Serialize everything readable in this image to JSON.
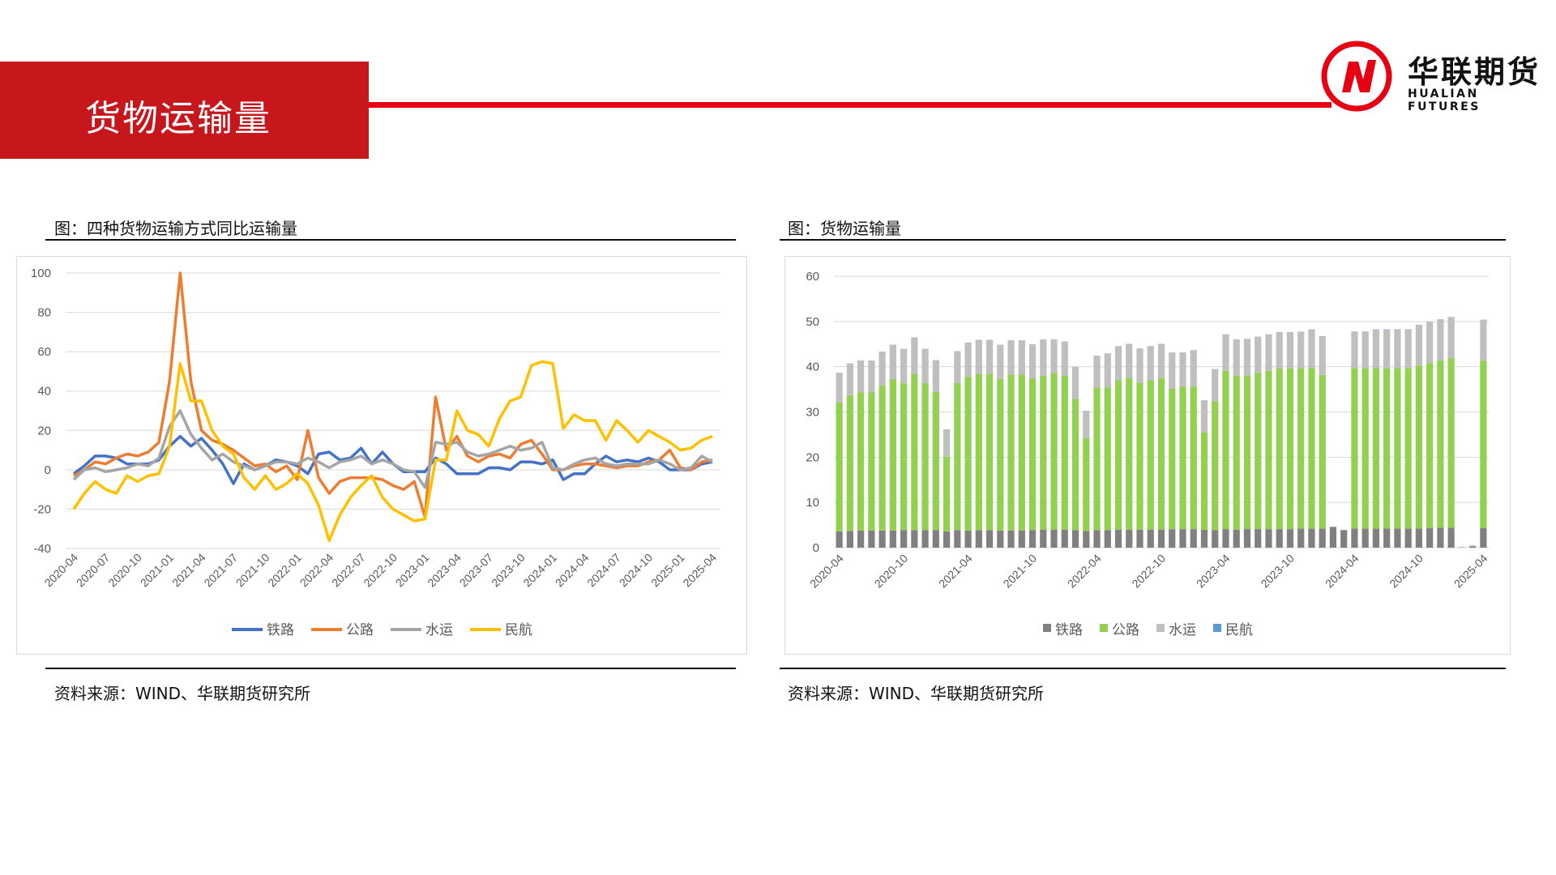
{
  "header": {
    "title": "货物运输量"
  },
  "logo": {
    "name": "华联期货",
    "sub": "HUALIAN FUTURES",
    "accent": "#e60012"
  },
  "left": {
    "caption": "图：四种货物运输方式同比运输量",
    "source": "资料来源：WIND、华联期货研究所"
  },
  "right": {
    "caption": "图：货物运输量",
    "source": "资料来源：WIND、华联期货研究所"
  },
  "chart_data": [
    {
      "type": "line",
      "title": "",
      "ylim": [
        -40,
        100
      ],
      "yticks": [
        -40,
        -20,
        0,
        20,
        40,
        60,
        80,
        100
      ],
      "x": [
        "2020-04",
        "2020-05",
        "2020-06",
        "2020-07",
        "2020-08",
        "2020-09",
        "2020-10",
        "2020-11",
        "2020-12",
        "2021-01",
        "2021-02",
        "2021-03",
        "2021-04",
        "2021-05",
        "2021-06",
        "2021-07",
        "2021-08",
        "2021-09",
        "2021-10",
        "2021-11",
        "2021-12",
        "2022-01",
        "2022-02",
        "2022-03",
        "2022-04",
        "2022-05",
        "2022-06",
        "2022-07",
        "2022-08",
        "2022-09",
        "2022-10",
        "2022-11",
        "2022-12",
        "2023-01",
        "2023-02",
        "2023-03",
        "2023-04",
        "2023-05",
        "2023-06",
        "2023-07",
        "2023-08",
        "2023-09",
        "2023-10",
        "2023-11",
        "2023-12",
        "2024-01",
        "2024-02",
        "2024-03",
        "2024-04",
        "2024-05",
        "2024-06",
        "2024-07",
        "2024-08",
        "2024-09",
        "2024-10",
        "2024-11",
        "2024-12",
        "2025-01",
        "2025-02",
        "2025-03",
        "2025-04"
      ],
      "xticks": [
        "2020-04",
        "2020-07",
        "2020-10",
        "2021-01",
        "2021-04",
        "2021-07",
        "2021-10",
        "2022-01",
        "2022-04",
        "2022-07",
        "2022-10",
        "2023-01",
        "2023-04",
        "2023-07",
        "2023-10",
        "2024-01",
        "2024-04",
        "2024-07",
        "2024-10",
        "2025-01",
        "2025-04"
      ],
      "legend": "bottom",
      "grid": true,
      "series": [
        {
          "name": "铁路",
          "color": "#4472c4",
          "values": [
            -2,
            2,
            7,
            7,
            6,
            3,
            3,
            3,
            5,
            12,
            17,
            12,
            16,
            10,
            3,
            -7,
            3,
            0,
            2,
            5,
            4,
            2,
            -2,
            8,
            9,
            5,
            6,
            11,
            3,
            9,
            3,
            -1,
            -1,
            -1,
            6,
            3,
            -2,
            -2,
            -2,
            1,
            1,
            0,
            4,
            4,
            3,
            5,
            -5,
            -2,
            -2,
            3,
            7,
            4,
            5,
            4,
            6,
            4,
            0,
            0,
            0,
            3,
            4
          ]
        },
        {
          "name": "公路",
          "color": "#ed7d31",
          "values": [
            -3,
            0,
            4,
            3,
            6,
            8,
            7,
            9,
            14,
            45,
            100,
            45,
            20,
            15,
            13,
            10,
            6,
            2,
            3,
            -1,
            2,
            -5,
            20,
            -4,
            -12,
            -6,
            -4,
            -4,
            -4,
            -5,
            -8,
            -10,
            -6,
            -24,
            37,
            10,
            17,
            7,
            4,
            7,
            8,
            6,
            13,
            15,
            8,
            0,
            0,
            2,
            3,
            3,
            2,
            1,
            2,
            2,
            4,
            5,
            10,
            1,
            0,
            4,
            5
          ]
        },
        {
          "name": "水运",
          "color": "#a5a5a5",
          "values": [
            -5,
            0,
            1,
            -1,
            0,
            1,
            3,
            2,
            6,
            22,
            30,
            18,
            11,
            5,
            8,
            4,
            2,
            0,
            2,
            4,
            4,
            3,
            6,
            4,
            1,
            4,
            5,
            7,
            3,
            5,
            3,
            0,
            -1,
            -9,
            14,
            13,
            14,
            9,
            7,
            8,
            10,
            12,
            10,
            11,
            14,
            1,
            0,
            3,
            5,
            6,
            3,
            2,
            3,
            3,
            3,
            5,
            3,
            0,
            1,
            7,
            4
          ]
        },
        {
          "name": "民航",
          "color": "#ffc000",
          "values": [
            -20,
            -12,
            -6,
            -10,
            -12,
            -3,
            -6,
            -3,
            -2,
            12,
            54,
            35,
            35,
            20,
            12,
            8,
            -4,
            -10,
            -3,
            -10,
            -7,
            -2,
            -7,
            -18,
            -36,
            -23,
            -14,
            -8,
            -3,
            -14,
            -20,
            -23,
            -26,
            -25,
            5,
            5,
            30,
            20,
            18,
            12,
            26,
            35,
            37,
            53,
            55,
            54,
            21,
            28,
            25,
            25,
            15,
            25,
            20,
            14,
            20,
            17,
            14,
            10,
            11,
            15,
            17
          ]
        }
      ]
    },
    {
      "type": "bar",
      "stacked": true,
      "title": "",
      "ylim": [
        0,
        60
      ],
      "yticks": [
        0,
        10,
        20,
        30,
        40,
        50,
        60
      ],
      "x": [
        "2020-04",
        "2020-05",
        "2020-06",
        "2020-07",
        "2020-08",
        "2020-09",
        "2020-10",
        "2020-11",
        "2020-12",
        "2021-01",
        "2021-02",
        "2021-03",
        "2021-04",
        "2021-05",
        "2021-06",
        "2021-07",
        "2021-08",
        "2021-09",
        "2021-10",
        "2021-11",
        "2021-12",
        "2022-01",
        "2022-02",
        "2022-03",
        "2022-04",
        "2022-05",
        "2022-06",
        "2022-07",
        "2022-08",
        "2022-09",
        "2022-10",
        "2022-11",
        "2022-12",
        "2023-01",
        "2023-02",
        "2023-03",
        "2023-04",
        "2023-05",
        "2023-06",
        "2023-07",
        "2023-08",
        "2023-09",
        "2023-10",
        "2023-11",
        "2023-12",
        "2024-01",
        "2024-02",
        "2024-03",
        "2024-04",
        "2024-05",
        "2024-06",
        "2024-07",
        "2024-08",
        "2024-09",
        "2024-10",
        "2024-11",
        "2024-12",
        "2025-01",
        "2025-02",
        "2025-03",
        "2025-04"
      ],
      "xticks": [
        "2020-04",
        "2020-10",
        "2021-04",
        "2021-10",
        "2022-04",
        "2022-10",
        "2023-04",
        "2023-10",
        "2024-04",
        "2024-10",
        "2025-04"
      ],
      "legend": "bottom",
      "grid": true,
      "series": [
        {
          "name": "铁路",
          "color": "#808080",
          "values": [
            3.6,
            3.7,
            3.8,
            3.8,
            3.8,
            3.8,
            3.9,
            3.9,
            3.9,
            3.9,
            3.6,
            3.9,
            3.8,
            3.9,
            3.9,
            3.8,
            3.8,
            3.8,
            3.9,
            4.0,
            4.0,
            4.0,
            3.9,
            3.7,
            3.9,
            3.9,
            4.0,
            4.0,
            4.0,
            4.0,
            4.0,
            4.1,
            4.1,
            4.1,
            4.0,
            3.9,
            4.1,
            4.0,
            4.1,
            4.1,
            4.1,
            4.1,
            4.1,
            4.2,
            4.2,
            4.2,
            4.6,
            3.9,
            4.2,
            4.2,
            4.2,
            4.2,
            4.2,
            4.2,
            4.2,
            4.3,
            4.4,
            4.4,
            0,
            0.3,
            4.3
          ]
        },
        {
          "name": "公路",
          "color": "#92d050",
          "values": [
            28.5,
            30,
            30.5,
            30.5,
            32,
            33.5,
            32.5,
            34.5,
            32.5,
            30.5,
            16.5,
            32.5,
            34,
            34.5,
            34.5,
            33.5,
            34.5,
            34.5,
            33.5,
            34,
            34.5,
            34,
            29,
            20.5,
            31.5,
            31.5,
            33,
            33.5,
            32.5,
            33,
            33.5,
            31,
            31.5,
            31.5,
            21.5,
            28.5,
            35,
            34,
            34,
            34.5,
            35,
            35.5,
            35.5,
            35.5,
            35.5,
            34,
            0,
            0,
            35.5,
            35.5,
            35.5,
            35.5,
            35.5,
            35.5,
            36,
            36.5,
            37,
            37.5,
            0,
            0,
            37
          ]
        },
        {
          "name": "水运",
          "color": "#bfbfbf",
          "values": [
            6.5,
            7,
            7,
            7,
            7.5,
            7.5,
            7.5,
            8,
            7.5,
            7,
            6,
            7,
            7.5,
            7.5,
            7.5,
            7.5,
            7.5,
            7.5,
            7.5,
            8,
            7.5,
            7.5,
            7,
            6,
            7,
            7.5,
            7.5,
            7.5,
            7.5,
            7.5,
            7.5,
            8,
            7.5,
            8,
            7,
            7,
            8,
            8,
            8,
            8,
            8,
            8,
            8,
            8,
            8.5,
            8.5,
            0,
            0,
            8,
            8,
            8.5,
            8.5,
            8.5,
            8.5,
            9,
            9,
            9,
            9,
            0.2,
            0.2,
            9
          ]
        },
        {
          "name": "民航",
          "color": "#5b9bd5",
          "values": [
            0.05,
            0.05,
            0.05,
            0.05,
            0.05,
            0.05,
            0.05,
            0.05,
            0.05,
            0.05,
            0.05,
            0.05,
            0.05,
            0.05,
            0.05,
            0.05,
            0.05,
            0.05,
            0.05,
            0.05,
            0.05,
            0.05,
            0.05,
            0.05,
            0.05,
            0.05,
            0.05,
            0.05,
            0.05,
            0.05,
            0.05,
            0.05,
            0.05,
            0.05,
            0.05,
            0.05,
            0.05,
            0.05,
            0.05,
            0.05,
            0.05,
            0.05,
            0.05,
            0.05,
            0.05,
            0.05,
            0,
            0,
            0.07,
            0.07,
            0.07,
            0.07,
            0.07,
            0.07,
            0.07,
            0.07,
            0.07,
            0.07,
            0,
            0,
            0.07
          ]
        }
      ]
    }
  ]
}
